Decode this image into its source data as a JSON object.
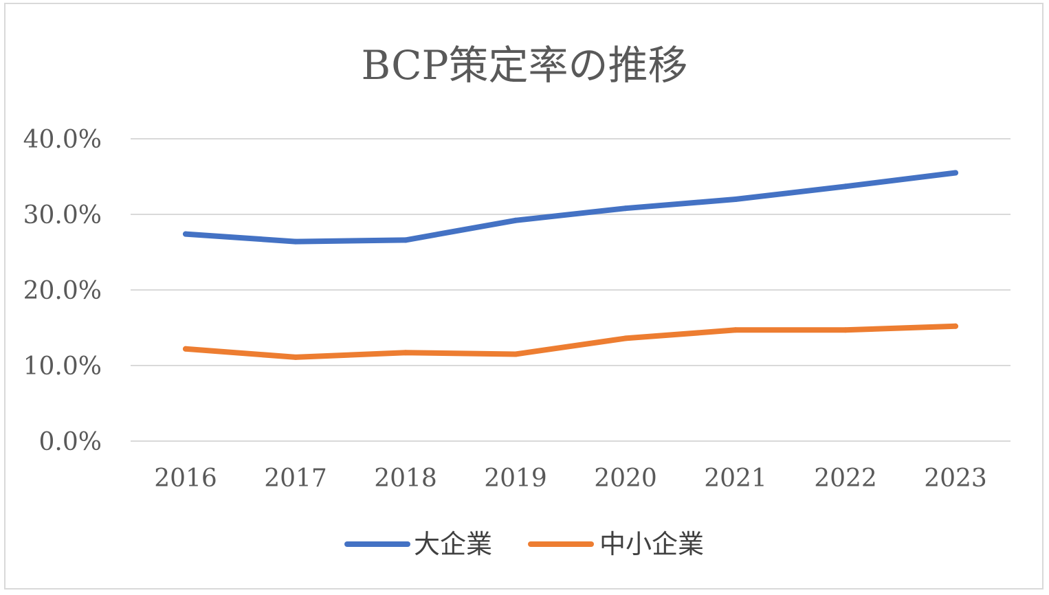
{
  "chart_data": {
    "type": "line",
    "title": "BCP策定率の推移",
    "xlabel": "",
    "ylabel": "",
    "categories": [
      "2016",
      "2017",
      "2018",
      "2019",
      "2020",
      "2021",
      "2022",
      "2023"
    ],
    "ylim": [
      0,
      40
    ],
    "yticks": [
      0,
      10,
      20,
      30,
      40
    ],
    "ytick_labels": [
      "0.0%",
      "10.0%",
      "20.0%",
      "30.0%",
      "40.0%"
    ],
    "grid": true,
    "legend_position": "bottom",
    "series": [
      {
        "name": "大企業",
        "color": "#4472c4",
        "values": [
          27.4,
          26.4,
          26.6,
          29.2,
          30.8,
          32.0,
          33.7,
          35.5
        ]
      },
      {
        "name": "中小企業",
        "color": "#ed7d31",
        "values": [
          12.2,
          11.1,
          11.7,
          11.5,
          13.6,
          14.7,
          14.7,
          15.2
        ]
      }
    ]
  }
}
